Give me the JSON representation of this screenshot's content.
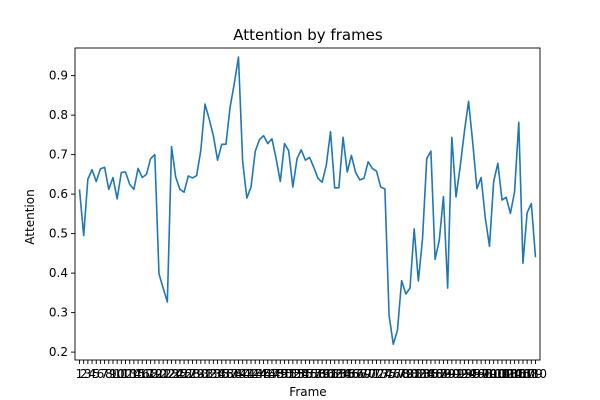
{
  "chart_data": {
    "type": "line",
    "title": "Attention by frames",
    "xlabel": "Frame",
    "ylabel": "Attention",
    "ylim": [
      0.18,
      0.97
    ],
    "y_ticks": [
      0.2,
      0.3,
      0.4,
      0.5,
      0.6,
      0.7,
      0.8,
      0.9
    ],
    "grid": false,
    "legend": "none",
    "line_color": "#1f77b4",
    "x": [
      1,
      2,
      3,
      4,
      5,
      6,
      7,
      8,
      9,
      10,
      11,
      12,
      13,
      14,
      15,
      16,
      17,
      18,
      19,
      20,
      21,
      22,
      23,
      24,
      25,
      26,
      27,
      28,
      29,
      30,
      31,
      32,
      33,
      34,
      35,
      36,
      37,
      38,
      39,
      40,
      41,
      42,
      43,
      44,
      45,
      46,
      47,
      48,
      49,
      50,
      51,
      52,
      53,
      54,
      55,
      56,
      57,
      58,
      59,
      60,
      61,
      62,
      63,
      64,
      65,
      66,
      67,
      68,
      69,
      70,
      71,
      72,
      73,
      74,
      75,
      76,
      77,
      78,
      79,
      80,
      81,
      82,
      83,
      84,
      85,
      86,
      87,
      88,
      89,
      90,
      91,
      92,
      93,
      94,
      95,
      96,
      97,
      98,
      99,
      100,
      101,
      102,
      103,
      104,
      105,
      106,
      107,
      108,
      109,
      110
    ],
    "values": [
      0.612,
      0.495,
      0.638,
      0.662,
      0.632,
      0.664,
      0.668,
      0.612,
      0.642,
      0.588,
      0.655,
      0.656,
      0.625,
      0.612,
      0.665,
      0.642,
      0.65,
      0.69,
      0.7,
      0.398,
      0.362,
      0.327,
      0.72,
      0.643,
      0.612,
      0.605,
      0.646,
      0.641,
      0.647,
      0.711,
      0.828,
      0.79,
      0.748,
      0.686,
      0.726,
      0.726,
      0.82,
      0.88,
      0.947,
      0.683,
      0.59,
      0.618,
      0.708,
      0.738,
      0.748,
      0.728,
      0.74,
      0.69,
      0.632,
      0.728,
      0.71,
      0.618,
      0.69,
      0.712,
      0.686,
      0.693,
      0.668,
      0.64,
      0.63,
      0.674,
      0.758,
      0.616,
      0.616,
      0.744,
      0.656,
      0.698,
      0.655,
      0.636,
      0.64,
      0.682,
      0.665,
      0.658,
      0.618,
      0.613,
      0.293,
      0.22,
      0.255,
      0.381,
      0.347,
      0.362,
      0.512,
      0.38,
      0.488,
      0.69,
      0.709,
      0.435,
      0.483,
      0.594,
      0.362,
      0.744,
      0.593,
      0.67,
      0.758,
      0.835,
      0.73,
      0.614,
      0.642,
      0.54,
      0.468,
      0.632,
      0.678,
      0.585,
      0.592,
      0.551,
      0.606,
      0.782,
      0.425,
      0.553,
      0.576,
      0.44
    ]
  }
}
